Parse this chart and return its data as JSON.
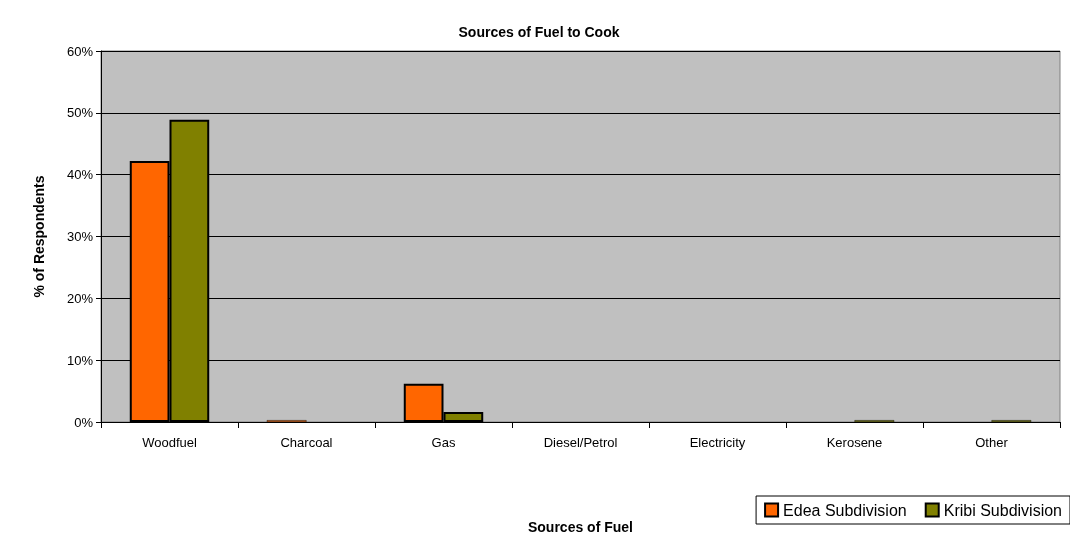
{
  "chart_data": {
    "type": "bar",
    "title": "Sources of Fuel to Cook",
    "xlabel": "Sources of Fuel",
    "ylabel": "% of Respondents",
    "categories": [
      "Woodfuel",
      "Charcoal",
      "Gas",
      "Diesel/Petrol",
      "Electricity",
      "Kerosene",
      "Other"
    ],
    "series": [
      {
        "name": "Edea Subdivision",
        "color": "#ff6600",
        "values": [
          42.2,
          0.3,
          6.2,
          0,
          0,
          0,
          0
        ]
      },
      {
        "name": "Kribi Subdivision",
        "color": "#808000",
        "values": [
          48.9,
          0,
          1.6,
          0,
          0,
          0.3,
          0.3
        ]
      }
    ],
    "ylim": [
      0,
      60
    ],
    "yticks": [
      {
        "value": 0,
        "label": "0%"
      },
      {
        "value": 10,
        "label": "10%"
      },
      {
        "value": 20,
        "label": "20%"
      },
      {
        "value": 30,
        "label": "30%"
      },
      {
        "value": 40,
        "label": "40%"
      },
      {
        "value": 50,
        "label": "50%"
      },
      {
        "value": 60,
        "label": "60%"
      }
    ],
    "grid": "y",
    "legend": "bottom right"
  }
}
